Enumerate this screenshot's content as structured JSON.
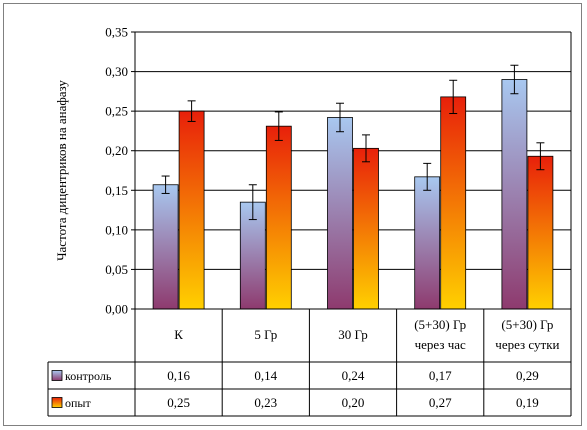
{
  "chart_data": {
    "type": "bar",
    "ylabel": "Частота дицентриков на анафазу",
    "ylim": [
      0,
      0.35
    ],
    "yticks": [
      "0,00",
      "0,05",
      "0,10",
      "0,15",
      "0,20",
      "0,25",
      "0,30",
      "0,35"
    ],
    "categories": [
      [
        "К"
      ],
      [
        "5 Гр"
      ],
      [
        "30 Гр"
      ],
      [
        "(5+30) Гр",
        "через час"
      ],
      [
        "(5+30) Гр",
        "через сутки"
      ]
    ],
    "series": [
      {
        "name": "контроль",
        "values": [
          0.157,
          0.135,
          0.242,
          0.167,
          0.29
        ],
        "errors": [
          0.011,
          0.022,
          0.018,
          0.017,
          0.018
        ],
        "table_values": [
          "0,16",
          "0,14",
          "0,24",
          "0,17",
          "0,29"
        ],
        "gradient": [
          "#a8c8f0",
          "#8e3a6e"
        ]
      },
      {
        "name": "опыт",
        "values": [
          0.25,
          0.231,
          0.203,
          0.268,
          0.193
        ],
        "errors": [
          0.013,
          0.018,
          0.017,
          0.021,
          0.017
        ],
        "table_values": [
          "0,25",
          "0,23",
          "0,20",
          "0,27",
          "0,19"
        ],
        "gradient": [
          "#e8200a",
          "#ffd000"
        ]
      }
    ],
    "grid": true,
    "legend": "data-table"
  }
}
